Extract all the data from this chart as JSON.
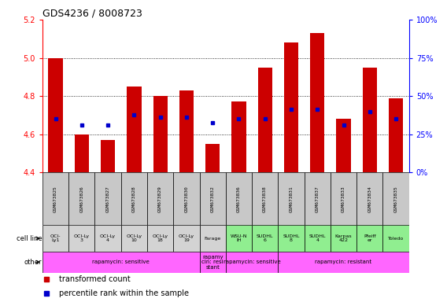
{
  "title": "GDS4236 / 8008723",
  "samples": [
    "GSM673825",
    "GSM673826",
    "GSM673827",
    "GSM673828",
    "GSM673829",
    "GSM673830",
    "GSM673832",
    "GSM673836",
    "GSM673838",
    "GSM673831",
    "GSM673837",
    "GSM673833",
    "GSM673834",
    "GSM673835"
  ],
  "red_values": [
    5.0,
    4.6,
    4.57,
    4.85,
    4.8,
    4.83,
    4.55,
    4.77,
    4.95,
    5.08,
    5.13,
    4.68,
    4.95,
    4.79
  ],
  "blue_values": [
    4.68,
    4.65,
    4.65,
    4.7,
    4.69,
    4.69,
    4.66,
    4.68,
    4.68,
    4.73,
    4.73,
    4.65,
    4.72,
    4.68
  ],
  "ylim": [
    4.4,
    5.2
  ],
  "yticks_left": [
    4.4,
    4.6,
    4.8,
    5.0,
    5.2
  ],
  "yticks_right": [
    0,
    25,
    50,
    75,
    100
  ],
  "cell_line_labels": [
    "OCI-\nLy1",
    "OCI-Ly\n3",
    "OCI-Ly\n4",
    "OCI-Ly\n10",
    "OCI-Ly\n18",
    "OCI-Ly\n19",
    "Farage",
    "WSU-N\nIH",
    "SUDHL\n6",
    "SUDHL\n8",
    "SUDHL\n4",
    "Karpas\n422",
    "Pfeiff\ner",
    "Toledo"
  ],
  "cell_line_colors": [
    "#d3d3d3",
    "#d3d3d3",
    "#d3d3d3",
    "#d3d3d3",
    "#d3d3d3",
    "#d3d3d3",
    "#d3d3d3",
    "#90ee90",
    "#90ee90",
    "#90ee90",
    "#90ee90",
    "#90ee90",
    "#90ee90",
    "#90ee90"
  ],
  "other_groups": [
    {
      "label": "rapamycin: sensitive",
      "start": 0,
      "end": 5,
      "color": "#ff66ff"
    },
    {
      "label": "rapamy\ncin: resi\nstant",
      "start": 6,
      "end": 6,
      "color": "#ff66ff"
    },
    {
      "label": "rapamycin: sensitive",
      "start": 7,
      "end": 8,
      "color": "#ff66ff"
    },
    {
      "label": "rapamycin: resistant",
      "start": 9,
      "end": 13,
      "color": "#ff66ff"
    }
  ],
  "bar_color": "#cc0000",
  "dot_color": "#0000cc",
  "background_color": "#ffffff",
  "gsm_bg_color": "#c8c8c8"
}
